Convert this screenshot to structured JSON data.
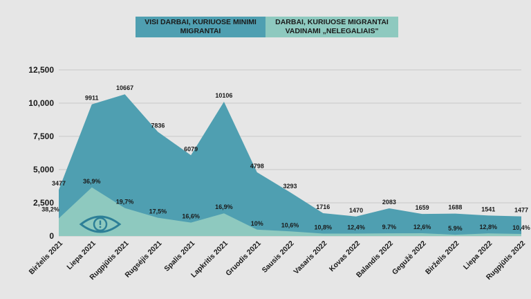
{
  "chart_data": {
    "type": "area",
    "legend_position": "top-center",
    "grid": true,
    "ylim": [
      0,
      12500
    ],
    "y_ticks": [
      {
        "value": 0,
        "label": "0"
      },
      {
        "value": 2500,
        "label": "2,500"
      },
      {
        "value": 5000,
        "label": "5,000"
      },
      {
        "value": 7500,
        "label": "7,500"
      },
      {
        "value": 10000,
        "label": "10,000"
      },
      {
        "value": 12500,
        "label": "12,500"
      }
    ],
    "categories": [
      "Birželis 2021",
      "Liepa 2021",
      "Rugpjūtis 2021",
      "Rugsėjis 2021",
      "Spalis 2021",
      "Lapkritis 2021",
      "Gruodis 2021",
      "Sausis 2022",
      "Vasaris 2022",
      "Kovas 2022",
      "Balandis 2022",
      "Gegužė 2022",
      "Birželis 2022",
      "Liepa 2022",
      "Rugpjūtis 2022"
    ],
    "series": [
      {
        "name": "VISI DARBAI, KURIUOSE MINIMI MIGRANTAI",
        "color": "#4f9fb1",
        "values": [
          3477,
          9911,
          10667,
          7836,
          6079,
          10106,
          4798,
          3293,
          1716,
          1470,
          2083,
          1659,
          1688,
          1541,
          1477
        ],
        "labels": [
          "3477",
          "9911",
          "10667",
          "7836",
          "6079",
          "10106",
          "4798",
          "3293",
          "1716",
          "1470",
          "2083",
          "1659",
          "1688",
          "1541",
          "1477"
        ]
      },
      {
        "name": "DARBAI, KURIUOSE MIGRANTAI VADINAMI „NELEGALIAIS\"",
        "color": "#8ec9bf",
        "values": [
          1328,
          3657,
          2101,
          1371,
          1009,
          1708,
          480,
          349,
          185,
          182,
          202,
          209,
          100,
          197,
          154
        ],
        "labels": [
          "38,2%",
          "36,9%",
          "19,7%",
          "17,5%",
          "16,6%",
          "16,9%",
          "10%",
          "10,6%",
          "10,8%",
          "12,4%",
          "9.7%",
          "12,6%",
          "5.9%",
          "12,8%",
          "10,4%"
        ]
      }
    ]
  },
  "icons": {
    "eye": "eye-warning-icon"
  }
}
